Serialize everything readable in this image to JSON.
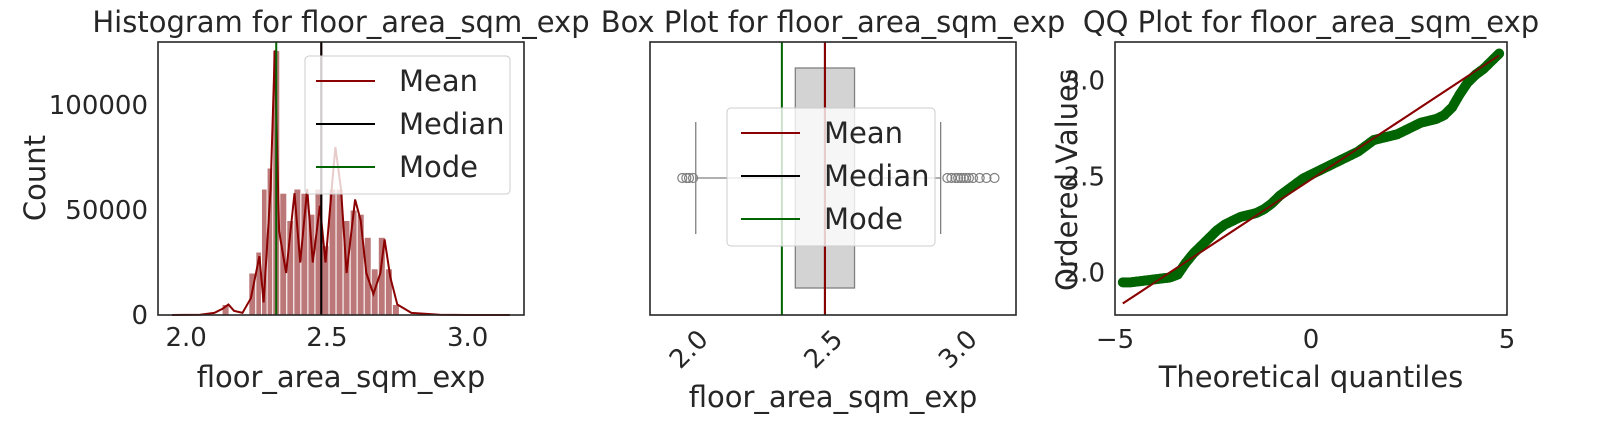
{
  "colors": {
    "kde": "#8b0000",
    "bar_fill": "#bc7878",
    "bar_edge": "#ffffff",
    "mean": "#8b0000",
    "median": "#000000",
    "mode": "#006400",
    "box_fill": "#d3d3d3",
    "box_edge": "#808080",
    "qq_points": "#006400",
    "qq_line": "#8b0000",
    "frame": "#262626"
  },
  "legend": {
    "mean": "Mean",
    "median": "Median",
    "mode": "Mode"
  },
  "chart_data": [
    {
      "type": "bar",
      "title": "Histogram for floor_area_sqm_exp",
      "xlabel": "floor_area_sqm_exp",
      "ylabel": "Count",
      "xlim": [
        1.9,
        3.2
      ],
      "ylim": [
        0,
        130000
      ],
      "xticks": [
        2.0,
        2.5,
        3.0
      ],
      "xtick_labels": [
        "2.0",
        "2.5",
        "3.0"
      ],
      "yticks": [
        0,
        50000,
        100000
      ],
      "ytick_labels": [
        "0",
        "50000",
        "100000"
      ],
      "bin_width": 0.025,
      "bins": [
        {
          "x": 2.14,
          "count": 5000
        },
        {
          "x": 2.235,
          "count": 20000
        },
        {
          "x": 2.26,
          "count": 30000
        },
        {
          "x": 2.28,
          "count": 60000
        },
        {
          "x": 2.3,
          "count": 70000
        },
        {
          "x": 2.32,
          "count": 126000
        },
        {
          "x": 2.345,
          "count": 58000
        },
        {
          "x": 2.37,
          "count": 45000
        },
        {
          "x": 2.395,
          "count": 60000
        },
        {
          "x": 2.42,
          "count": 58000
        },
        {
          "x": 2.445,
          "count": 48000
        },
        {
          "x": 2.47,
          "count": 60000
        },
        {
          "x": 2.495,
          "count": 33000
        },
        {
          "x": 2.52,
          "count": 60000
        },
        {
          "x": 2.545,
          "count": 60000
        },
        {
          "x": 2.57,
          "count": 45000
        },
        {
          "x": 2.595,
          "count": 50000
        },
        {
          "x": 2.62,
          "count": 48000
        },
        {
          "x": 2.645,
          "count": 37000
        },
        {
          "x": 2.67,
          "count": 22000
        },
        {
          "x": 2.695,
          "count": 37000
        },
        {
          "x": 2.72,
          "count": 22000
        },
        {
          "x": 2.745,
          "count": 5000
        }
      ],
      "kde": [
        [
          1.95,
          0
        ],
        [
          2.05,
          100
        ],
        [
          2.1,
          1000
        ],
        [
          2.13,
          3000
        ],
        [
          2.15,
          5000
        ],
        [
          2.17,
          2000
        ],
        [
          2.2,
          1000
        ],
        [
          2.23,
          8000
        ],
        [
          2.26,
          28000
        ],
        [
          2.275,
          6000
        ],
        [
          2.3,
          60000
        ],
        [
          2.315,
          126000
        ],
        [
          2.33,
          40000
        ],
        [
          2.355,
          20000
        ],
        [
          2.385,
          58000
        ],
        [
          2.405,
          25000
        ],
        [
          2.43,
          60000
        ],
        [
          2.45,
          25000
        ],
        [
          2.475,
          52000
        ],
        [
          2.495,
          25000
        ],
        [
          2.52,
          65000
        ],
        [
          2.53,
          80000
        ],
        [
          2.55,
          60000
        ],
        [
          2.57,
          20000
        ],
        [
          2.6,
          55000
        ],
        [
          2.62,
          45000
        ],
        [
          2.64,
          20000
        ],
        [
          2.665,
          10000
        ],
        [
          2.69,
          20000
        ],
        [
          2.705,
          36000
        ],
        [
          2.725,
          18000
        ],
        [
          2.75,
          5000
        ],
        [
          2.8,
          1000
        ],
        [
          2.9,
          100
        ],
        [
          3.0,
          0
        ],
        [
          3.15,
          0
        ]
      ],
      "mean": 2.48,
      "median": 2.48,
      "mode": 2.32
    },
    {
      "type": "box",
      "title": "Box Plot for floor_area_sqm_exp",
      "xlabel": "floor_area_sqm_exp",
      "xlim": [
        1.83,
        3.19
      ],
      "xticks": [
        2.0,
        2.5,
        3.0
      ],
      "xtick_labels": [
        "2.0",
        "2.5",
        "3.0"
      ],
      "whisker_low": 2.0,
      "q1": 2.37,
      "median": 2.48,
      "q3": 2.59,
      "whisker_high": 2.91,
      "outliers": [
        1.95,
        1.965,
        1.975,
        1.99,
        2.935,
        2.95,
        2.965,
        2.975,
        2.985,
        2.995,
        3.005,
        3.015,
        3.03,
        3.055,
        3.08,
        3.11
      ],
      "mean": 2.48,
      "mode": 2.32
    },
    {
      "type": "scatter",
      "title": "QQ Plot for floor_area_sqm_exp",
      "xlabel": "Theoretical quantiles",
      "ylabel": "Ordered Values",
      "xlim": [
        -5.0,
        5.0
      ],
      "ylim": [
        1.78,
        3.2
      ],
      "xticks": [
        -5,
        0,
        5
      ],
      "xtick_labels": [
        "−5",
        "0",
        "5"
      ],
      "yticks": [
        2.0,
        2.5,
        3.0
      ],
      "ytick_labels": [
        "2.0",
        "2.5",
        "3.0"
      ],
      "points": [
        [
          -4.8,
          1.95
        ],
        [
          -4.6,
          1.95
        ],
        [
          -4.4,
          1.955
        ],
        [
          -4.2,
          1.96
        ],
        [
          -4.0,
          1.965
        ],
        [
          -3.8,
          1.97
        ],
        [
          -3.6,
          1.975
        ],
        [
          -3.4,
          1.99
        ],
        [
          -3.2,
          2.05
        ],
        [
          -3.0,
          2.1
        ],
        [
          -2.8,
          2.14
        ],
        [
          -2.6,
          2.18
        ],
        [
          -2.4,
          2.22
        ],
        [
          -2.2,
          2.25
        ],
        [
          -2.0,
          2.27
        ],
        [
          -1.8,
          2.29
        ],
        [
          -1.6,
          2.3
        ],
        [
          -1.4,
          2.31
        ],
        [
          -1.2,
          2.33
        ],
        [
          -1.0,
          2.36
        ],
        [
          -0.8,
          2.4
        ],
        [
          -0.6,
          2.43
        ],
        [
          -0.4,
          2.46
        ],
        [
          -0.2,
          2.49
        ],
        [
          0.0,
          2.51
        ],
        [
          0.2,
          2.53
        ],
        [
          0.4,
          2.55
        ],
        [
          0.6,
          2.57
        ],
        [
          0.8,
          2.59
        ],
        [
          1.0,
          2.61
        ],
        [
          1.2,
          2.63
        ],
        [
          1.4,
          2.66
        ],
        [
          1.6,
          2.69
        ],
        [
          1.8,
          2.7
        ],
        [
          2.0,
          2.71
        ],
        [
          2.2,
          2.72
        ],
        [
          2.4,
          2.74
        ],
        [
          2.6,
          2.76
        ],
        [
          2.8,
          2.78
        ],
        [
          3.0,
          2.79
        ],
        [
          3.2,
          2.8
        ],
        [
          3.4,
          2.82
        ],
        [
          3.6,
          2.86
        ],
        [
          3.8,
          2.93
        ],
        [
          4.0,
          2.99
        ],
        [
          4.2,
          3.03
        ],
        [
          4.4,
          3.06
        ],
        [
          4.6,
          3.1
        ],
        [
          4.8,
          3.14
        ]
      ],
      "fit_line": [
        [
          -4.8,
          1.84
        ],
        [
          4.8,
          3.13
        ]
      ]
    }
  ]
}
